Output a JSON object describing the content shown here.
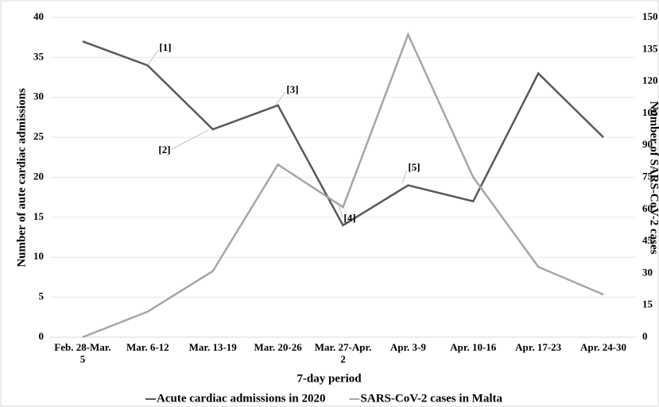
{
  "chart_data": {
    "type": "line",
    "x_label": "7-day period",
    "y_label": "Number of aute cardiac admissions",
    "y2_label": "Number of SARS-CoV-2 cases",
    "categories": [
      "Feb. 28-Mar. 5",
      "Mar. 6-12",
      "Mar. 13-19",
      "Mar. 20-26",
      "Mar. 27-Apr. 2",
      "Apr. 3-9",
      "Apr. 10-16",
      "Apr. 17-23",
      "Apr. 24-30"
    ],
    "series": [
      {
        "name": "Acute cardiac admissions in 2020",
        "color": "#595959",
        "values": [
          37,
          34,
          26,
          29,
          14,
          19,
          17,
          33,
          25
        ]
      },
      {
        "name": "SARS-CoV-2 cases in Malta",
        "color": "#a6a6a6",
        "axis": "y2",
        "values": [
          0,
          12,
          31,
          81,
          61,
          142,
          75,
          33,
          20
        ]
      }
    ],
    "ylim": [
      0,
      40
    ],
    "yticks": [
      0,
      5,
      10,
      15,
      20,
      25,
      30,
      35,
      40
    ],
    "y2lim": [
      0,
      150
    ],
    "y2ticks": [
      0,
      15,
      30,
      45,
      60,
      75,
      90,
      105,
      120,
      135,
      150
    ],
    "grid": true,
    "annotations": [
      {
        "text": "[1]"
      },
      {
        "text": "[2]"
      },
      {
        "text": "[3]"
      },
      {
        "text": "[4]"
      },
      {
        "text": "[5]"
      }
    ]
  }
}
